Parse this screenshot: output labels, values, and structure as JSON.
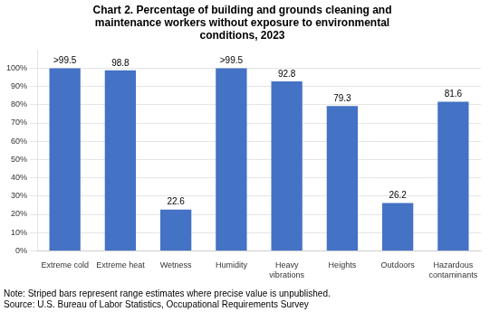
{
  "chart_data": {
    "type": "bar",
    "title": "Chart 2. Percentage of building and grounds cleaning and\nmaintenance workers without exposure to environmental\nconditions, 2023",
    "categories": [
      "Extreme cold",
      "Extreme heat",
      "Wetness",
      "Humidity",
      "Heavy\nvibrations",
      "Heights",
      "Outdoors",
      "Hazardous\ncontaminants"
    ],
    "values": [
      99.9,
      98.8,
      22.6,
      99.9,
      92.8,
      79.3,
      26.2,
      81.6
    ],
    "value_labels": [
      ">99.5",
      "98.8",
      "22.6",
      ">99.5",
      "92.8",
      "79.3",
      "26.2",
      "81.6"
    ],
    "data_labels": true,
    "color": "#4472C4",
    "ylim": [
      0,
      110
    ],
    "yticks": [
      {
        "value": 0,
        "label": "0%"
      },
      {
        "value": 10,
        "label": "10%"
      },
      {
        "value": 20,
        "label": "20%"
      },
      {
        "value": 30,
        "label": "30%"
      },
      {
        "value": 40,
        "label": "40%"
      },
      {
        "value": 50,
        "label": "50%"
      },
      {
        "value": 60,
        "label": "60%"
      },
      {
        "value": 70,
        "label": "70%"
      },
      {
        "value": 80,
        "label": "80%"
      },
      {
        "value": 90,
        "label": "90%"
      },
      {
        "value": 100,
        "label": "100%"
      }
    ],
    "grid": true,
    "annotations": [
      "Note: Striped bars represent range estimates where precise value is unpublished.",
      "Source: U.S. Bureau of Labor Statistics, Occupational Requirements Survey"
    ]
  }
}
